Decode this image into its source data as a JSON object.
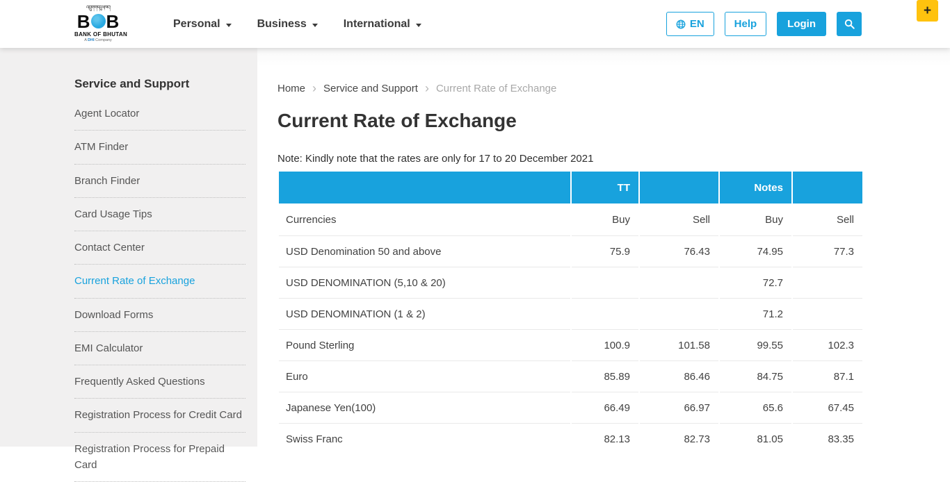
{
  "navbar": {
    "brand": {
      "script_text": "འབྲུག་གི་དངུལ་ཁང་།",
      "letter_left": "B",
      "letter_right": "B",
      "bank_name": "BANK OF BHUTAN",
      "tagline_prefix": "A ",
      "tagline_dhi": "DHI",
      "tagline_suffix": " Company"
    },
    "menu": [
      {
        "label": "Personal"
      },
      {
        "label": "Business"
      },
      {
        "label": "International"
      }
    ],
    "lang_button": "EN",
    "help_button": "Help",
    "login_button": "Login"
  },
  "accessibility_button": "+",
  "sidebar": {
    "heading": "Service and Support",
    "items": [
      {
        "label": "Agent Locator",
        "active": false
      },
      {
        "label": "ATM Finder",
        "active": false
      },
      {
        "label": "Branch Finder",
        "active": false
      },
      {
        "label": "Card Usage Tips",
        "active": false
      },
      {
        "label": "Contact Center",
        "active": false
      },
      {
        "label": "Current Rate of Exchange",
        "active": true
      },
      {
        "label": "Download Forms",
        "active": false
      },
      {
        "label": "EMI Calculator",
        "active": false
      },
      {
        "label": "Frequently Asked Questions",
        "active": false
      },
      {
        "label": "Registration Process for Credit Card",
        "active": false
      },
      {
        "label": "Registration Process for Prepaid Card",
        "active": false
      }
    ]
  },
  "breadcrumb": [
    {
      "label": "Home",
      "current": false
    },
    {
      "label": "Service and Support",
      "current": false
    },
    {
      "label": "Current Rate of Exchange",
      "current": true
    }
  ],
  "page": {
    "title": "Current Rate of Exchange",
    "note": "Note: Kindly note that the rates are only for 17 to 20 December 2021"
  },
  "rates_table": {
    "group_headers": [
      "",
      "TT",
      "",
      "Notes",
      ""
    ],
    "column_headers": [
      "Currencies",
      "Buy",
      "Sell",
      "Buy",
      "Sell"
    ],
    "rows": [
      {
        "cells": [
          "USD Denomination 50 and above",
          "75.9",
          "76.43",
          "74.95",
          "77.3"
        ]
      },
      {
        "cells": [
          "USD DENOMINATION (5,10 & 20)",
          "",
          "",
          "72.7",
          ""
        ]
      },
      {
        "cells": [
          "USD DENOMINATION (1 & 2)",
          "",
          "",
          "71.2",
          ""
        ]
      },
      {
        "cells": [
          "Pound Sterling",
          "100.9",
          "101.58",
          "99.55",
          "102.3"
        ]
      },
      {
        "cells": [
          "Euro",
          "85.89",
          "86.46",
          "84.75",
          "87.1"
        ]
      },
      {
        "cells": [
          "Japanese Yen(100)",
          "66.49",
          "66.97",
          "65.6",
          "67.45"
        ]
      },
      {
        "cells": [
          "Swiss Franc",
          "82.13",
          "82.73",
          "81.05",
          "83.35"
        ]
      }
    ]
  },
  "colors": {
    "accent": "#18a2dd",
    "plus_yellow": "#ffc20e",
    "sidebar_bg": "#f1f0f0",
    "header_text": "#ffffff"
  }
}
